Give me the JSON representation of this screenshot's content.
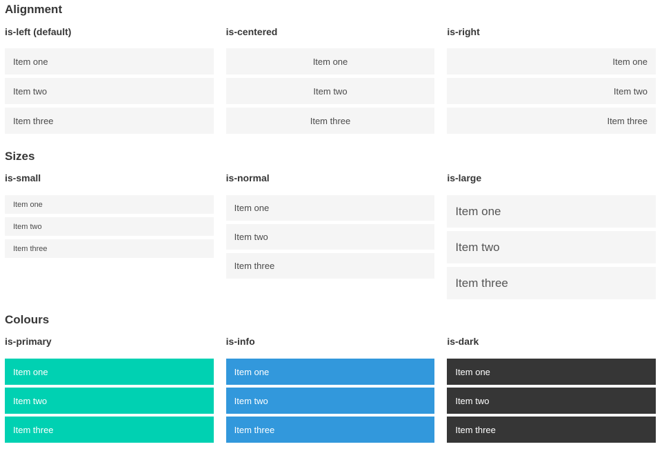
{
  "sections": [
    {
      "title": "Alignment",
      "variants": [
        {
          "label": "is-left (default)",
          "items": [
            "Item one",
            "Item two",
            "Item three"
          ]
        },
        {
          "label": "is-centered",
          "items": [
            "Item one",
            "Item two",
            "Item three"
          ]
        },
        {
          "label": "is-right",
          "items": [
            "Item one",
            "Item two",
            "Item three"
          ]
        }
      ]
    },
    {
      "title": "Sizes",
      "variants": [
        {
          "label": "is-small",
          "items": [
            "Item one",
            "Item two",
            "Item three"
          ]
        },
        {
          "label": "is-normal",
          "items": [
            "Item one",
            "Item two",
            "Item three"
          ]
        },
        {
          "label": "is-large",
          "items": [
            "Item one",
            "Item two",
            "Item three"
          ]
        }
      ]
    },
    {
      "title": "Colours",
      "variants": [
        {
          "label": "is-primary",
          "items": [
            "Item one",
            "Item two",
            "Item three"
          ]
        },
        {
          "label": "is-info",
          "items": [
            "Item one",
            "Item two",
            "Item three"
          ]
        },
        {
          "label": "is-dark",
          "items": [
            "Item one",
            "Item two",
            "Item three"
          ]
        }
      ]
    }
  ],
  "colors": {
    "primary": "#00d1b2",
    "info": "#3298dc",
    "dark": "#363636",
    "item_background": "#f5f5f5",
    "item_text": "#4a4a4a",
    "colored_item_text": "#ffffff",
    "heading_text": "#363636"
  }
}
